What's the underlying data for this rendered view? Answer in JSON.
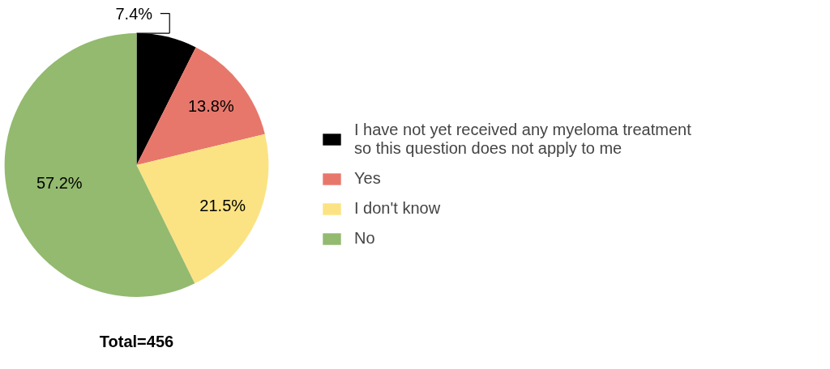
{
  "chart_data": {
    "type": "pie",
    "categories": [
      "I have not yet received any myeloma treatment so this question does not apply to me",
      "Yes",
      "I don't know",
      "No"
    ],
    "values": [
      7.4,
      13.8,
      21.5,
      57.2
    ],
    "colors": [
      "#000000",
      "#e8776b",
      "#fbe383",
      "#93ba6f"
    ],
    "value_labels": [
      "7.4%",
      "13.8%",
      "21.5%",
      "57.2%"
    ],
    "legend": "right",
    "annotations": [
      "Total=456"
    ]
  }
}
